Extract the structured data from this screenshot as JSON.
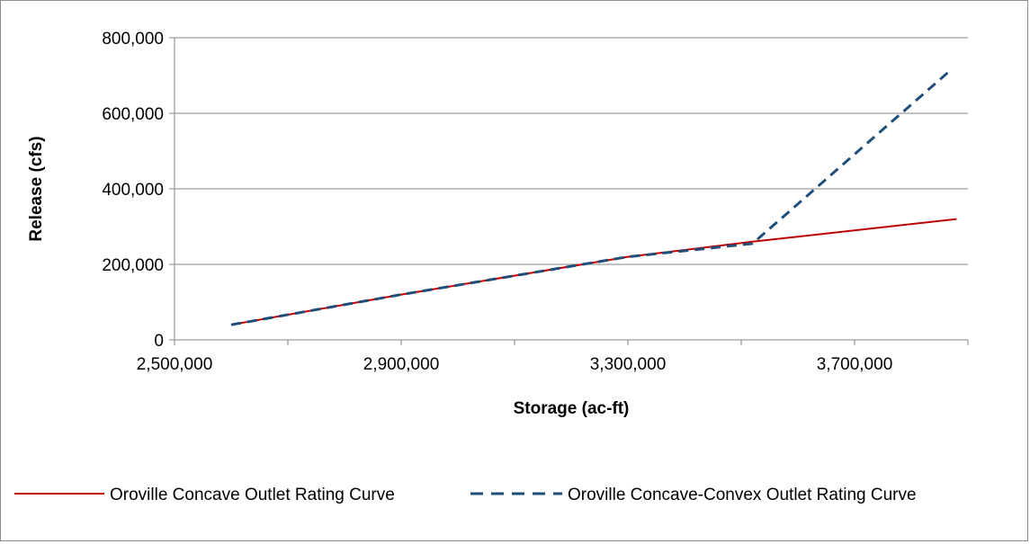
{
  "chart_data": {
    "type": "line",
    "xlabel": "Storage (ac-ft)",
    "ylabel": "Release (cfs)",
    "xlim": [
      2500000,
      3900000
    ],
    "ylim": [
      0,
      800000
    ],
    "x_ticks": [
      "2,500,000",
      "2,900,000",
      "3,300,000",
      "3,700,000"
    ],
    "x_tick_values": [
      2500000,
      2900000,
      3300000,
      3700000
    ],
    "y_ticks": [
      "0",
      "200,000",
      "400,000",
      "600,000",
      "800,000"
    ],
    "y_tick_values": [
      0,
      200000,
      400000,
      600000,
      800000
    ],
    "grid": "horizontal",
    "legend_position": "bottom",
    "series": [
      {
        "name": "Oroville Concave Outlet Rating Curve",
        "color": "#c00000",
        "style": "solid",
        "x": [
          2600000,
          2900000,
          3300000,
          3520000,
          3880000
        ],
        "y": [
          40000,
          120000,
          220000,
          260000,
          320000
        ]
      },
      {
        "name": "Oroville Concave-Convex Outlet Rating Curve",
        "color": "#1f4e79",
        "style": "dashed",
        "x": [
          2600000,
          2900000,
          3300000,
          3520000,
          3870000
        ],
        "y": [
          40000,
          120000,
          220000,
          255000,
          715000
        ]
      }
    ]
  }
}
